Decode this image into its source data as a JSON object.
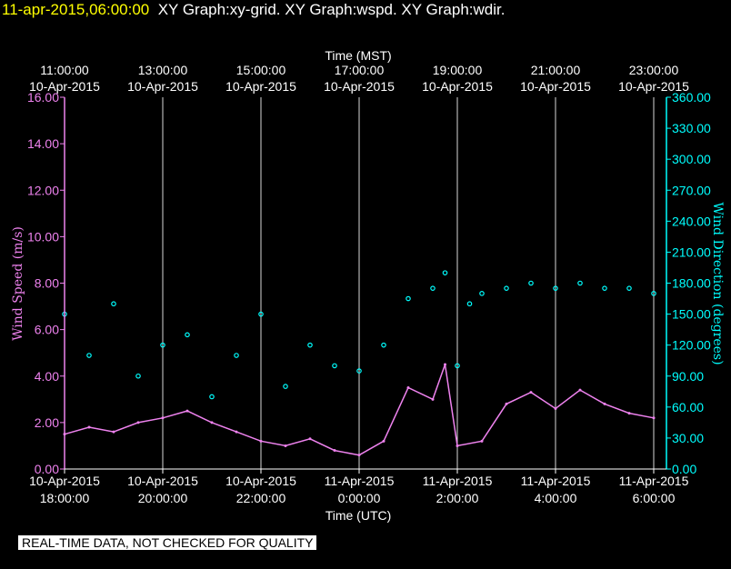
{
  "header": {
    "timestamp": "11-apr-2015,06:00:00",
    "graphs": "XY Graph:xy-grid.  XY Graph:wspd.  XY Graph:wdir."
  },
  "footer": {
    "notice": "REAL-TIME DATA, NOT CHECKED FOR QUALITY"
  },
  "colors": {
    "background": "#000000",
    "wind_speed": "#ee82ee",
    "wind_direction": "#00ffff",
    "timestamp": "#ffff00",
    "grid": "#ffffff"
  },
  "chart_data": {
    "type": "line",
    "top_axis": {
      "label": "Time (MST)",
      "ticks": [
        {
          "time": "11:00:00",
          "date": "10-Apr-2015"
        },
        {
          "time": "13:00:00",
          "date": "10-Apr-2015"
        },
        {
          "time": "15:00:00",
          "date": "10-Apr-2015"
        },
        {
          "time": "17:00:00",
          "date": "10-Apr-2015"
        },
        {
          "time": "19:00:00",
          "date": "10-Apr-2015"
        },
        {
          "time": "21:00:00",
          "date": "10-Apr-2015"
        },
        {
          "time": "23:00:00",
          "date": "10-Apr-2015"
        }
      ]
    },
    "bottom_axis": {
      "label": "Time (UTC)",
      "ticks": [
        {
          "date": "10-Apr-2015",
          "time": "18:00:00"
        },
        {
          "date": "10-Apr-2015",
          "time": "20:00:00"
        },
        {
          "date": "10-Apr-2015",
          "time": "22:00:00"
        },
        {
          "date": "11-Apr-2015",
          "time": "0:00:00"
        },
        {
          "date": "11-Apr-2015",
          "time": "2:00:00"
        },
        {
          "date": "11-Apr-2015",
          "time": "4:00:00"
        },
        {
          "date": "11-Apr-2015",
          "time": "6:00:00"
        }
      ],
      "range_utc": [
        "2015-04-10T18:00:00",
        "2015-04-11T06:00:00"
      ]
    },
    "left_axis": {
      "label": "Wind Speed (m/s)",
      "ylim": [
        0,
        16
      ],
      "ticks": [
        "0.00",
        "2.00",
        "4.00",
        "6.00",
        "8.00",
        "10.00",
        "12.00",
        "14.00",
        "16.00"
      ]
    },
    "right_axis": {
      "label": "Wind Direction (degrees)",
      "ylim": [
        0,
        360
      ],
      "ticks": [
        "0.00",
        "30.00",
        "60.00",
        "90.00",
        "120.00",
        "150.00",
        "180.00",
        "210.00",
        "240.00",
        "270.00",
        "300.00",
        "330.00",
        "360.00"
      ]
    },
    "grid": "vertical",
    "series": [
      {
        "axis": "left",
        "style": "line",
        "color": "#ee82ee",
        "x": [
          "2015-04-10T18:00:00",
          "2015-04-10T18:30:00",
          "2015-04-10T19:00:00",
          "2015-04-10T19:30:00",
          "2015-04-10T20:00:00",
          "2015-04-10T20:30:00",
          "2015-04-10T21:00:00",
          "2015-04-10T21:30:00",
          "2015-04-10T22:00:00",
          "2015-04-10T22:30:00",
          "2015-04-10T23:00:00",
          "2015-04-10T23:30:00",
          "2015-04-11T00:00:00",
          "2015-04-11T00:30:00",
          "2015-04-11T01:00:00",
          "2015-04-11T01:30:00",
          "2015-04-11T01:45:00",
          "2015-04-11T02:00:00",
          "2015-04-11T02:30:00",
          "2015-04-11T03:00:00",
          "2015-04-11T03:30:00",
          "2015-04-11T04:00:00",
          "2015-04-11T04:30:00",
          "2015-04-11T05:00:00",
          "2015-04-11T05:30:00",
          "2015-04-11T06:00:00"
        ],
        "values": [
          1.5,
          1.8,
          1.6,
          2.0,
          2.2,
          2.5,
          2.0,
          1.6,
          1.2,
          1.0,
          1.3,
          0.8,
          0.6,
          1.2,
          3.5,
          3.0,
          4.5,
          1.0,
          1.2,
          2.8,
          3.3,
          2.6,
          3.4,
          2.8,
          2.4,
          2.2
        ]
      },
      {
        "axis": "right",
        "style": "scatter",
        "color": "#00ffff",
        "x": [
          "2015-04-10T18:00:00",
          "2015-04-10T18:30:00",
          "2015-04-10T19:00:00",
          "2015-04-10T19:30:00",
          "2015-04-10T20:00:00",
          "2015-04-10T20:30:00",
          "2015-04-10T21:00:00",
          "2015-04-10T21:30:00",
          "2015-04-10T22:00:00",
          "2015-04-10T22:30:00",
          "2015-04-10T23:00:00",
          "2015-04-10T23:30:00",
          "2015-04-11T00:00:00",
          "2015-04-11T00:30:00",
          "2015-04-11T01:00:00",
          "2015-04-11T01:30:00",
          "2015-04-11T01:45:00",
          "2015-04-11T02:00:00",
          "2015-04-11T02:15:00",
          "2015-04-11T02:30:00",
          "2015-04-11T03:00:00",
          "2015-04-11T03:30:00",
          "2015-04-11T04:00:00",
          "2015-04-11T04:30:00",
          "2015-04-11T05:00:00",
          "2015-04-11T05:30:00",
          "2015-04-11T06:00:00"
        ],
        "values": [
          150,
          110,
          160,
          90,
          120,
          130,
          70,
          110,
          150,
          80,
          120,
          100,
          95,
          120,
          165,
          175,
          190,
          100,
          160,
          170,
          175,
          180,
          175,
          180,
          175,
          175,
          170
        ]
      }
    ]
  }
}
